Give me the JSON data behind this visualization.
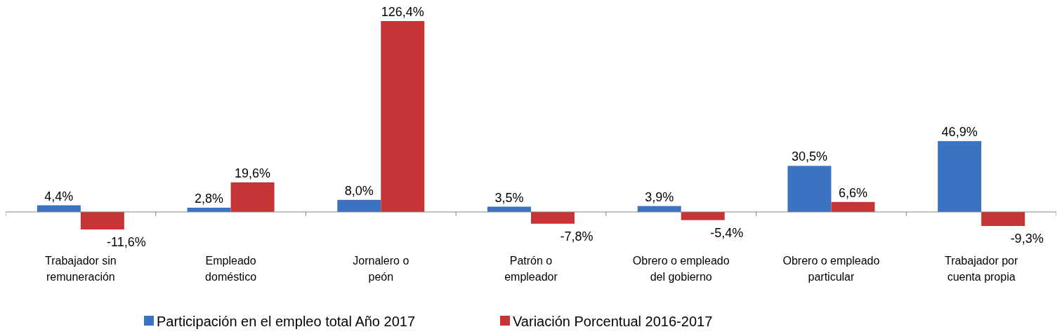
{
  "chart_data": {
    "type": "bar",
    "categories": [
      "Trabajador sin\nremuneración",
      "Empleado\ndoméstico",
      "Jornalero o\npeón",
      "Patrón o\nempleador",
      "Obrero o empleado\ndel gobierno",
      "Obrero o empleado\nparticular",
      "Trabajador por\ncuenta propia"
    ],
    "series": [
      {
        "name": "Participación en el empleo total Año 2017",
        "color": "#3b73c2",
        "values": [
          4.4,
          2.8,
          8.0,
          3.5,
          3.9,
          30.5,
          46.9
        ],
        "value_labels": [
          "4,4%",
          "2,8%",
          "8,0%",
          "3,5%",
          "3,9%",
          "30,5%",
          "46,9%"
        ]
      },
      {
        "name": "Variación Porcentual 2016-2017",
        "color": "#c63535",
        "values": [
          -11.6,
          19.6,
          126.4,
          -7.8,
          -5.4,
          6.6,
          -9.3
        ],
        "value_labels": [
          "-11,6%",
          "19,6%",
          "126,4%",
          "-7,8%",
          "-5,4%",
          "6,6%",
          "-9,3%"
        ]
      }
    ],
    "legend": "bottom"
  }
}
